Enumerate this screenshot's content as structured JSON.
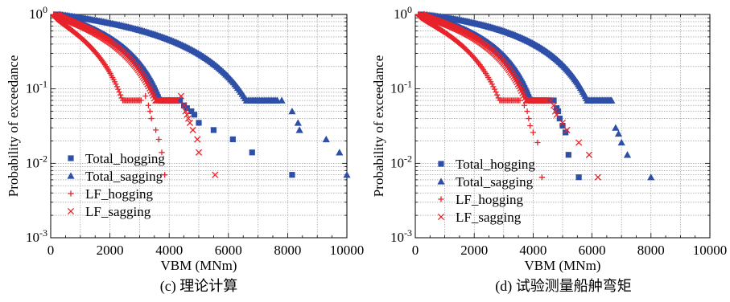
{
  "panels": [
    {
      "caption": "(c) 理论计算",
      "chart_data": {
        "type": "scatter",
        "xlabel": "VBM (MNm)",
        "ylabel": "Probability of exceedance",
        "xlim": [
          0,
          10000
        ],
        "ylim": [
          0.001,
          1
        ],
        "yscale": "log",
        "grid": true,
        "legend_position": "bottom-left",
        "x_ticks": [
          "0",
          "2000",
          "4000",
          "6000",
          "8000",
          "10000"
        ],
        "y_ticks": [
          {
            "base": "10",
            "exp": "-3",
            "value": 0.001
          },
          {
            "base": "10",
            "exp": "-2",
            "value": 0.01
          },
          {
            "base": "10",
            "exp": "-1",
            "value": 0.1
          },
          {
            "base": "10",
            "exp": "0",
            "value": 1
          }
        ],
        "series": [
          {
            "name": "Total_hogging",
            "marker": "square",
            "color": "#2E4FA8",
            "start": 200,
            "end": 4400,
            "shape": 1.2,
            "n": 140,
            "tail_x": [
              4500,
              4600,
              4750,
              4850,
              5000,
              5500,
              6150,
              6800,
              8150
            ],
            "tail_y": [
              0.06,
              0.055,
              0.05,
              0.045,
              0.035,
              0.028,
              0.021,
              0.014,
              0.007
            ]
          },
          {
            "name": "Total_sagging",
            "marker": "triangle",
            "color": "#2E4FA8",
            "start": 300,
            "end": 7700,
            "shape": 1.0,
            "n": 150,
            "tail_x": [
              7800,
              8150,
              8350,
              8400,
              9300,
              9750,
              10000
            ],
            "tail_y": [
              0.07,
              0.05,
              0.035,
              0.028,
              0.021,
              0.014,
              0.007
            ]
          },
          {
            "name": "LF_hogging",
            "marker": "plus",
            "color": "#E8232A",
            "start": 100,
            "end": 3100,
            "shape": 1.6,
            "n": 110,
            "tail_x": [
              3200,
              3300,
              3350,
              3400,
              3550,
              3650,
              3750,
              3850
            ],
            "tail_y": [
              0.08,
              0.06,
              0.05,
              0.04,
              0.028,
              0.021,
              0.014,
              0.007
            ]
          },
          {
            "name": "LF_sagging",
            "marker": "x",
            "color": "#E8232A",
            "start": 200,
            "end": 4300,
            "shape": 1.3,
            "n": 130,
            "tail_x": [
              4400,
              4500,
              4550,
              4600,
              4650,
              4700,
              4800,
              4950,
              5000,
              5550
            ],
            "tail_y": [
              0.08,
              0.06,
              0.05,
              0.045,
              0.04,
              0.035,
              0.028,
              0.021,
              0.014,
              0.007
            ]
          }
        ]
      }
    },
    {
      "caption": "(d) 试验测量船舯弯矩",
      "chart_data": {
        "type": "scatter",
        "xlabel": "VBM (MNm)",
        "ylabel": "Probability of exceedance",
        "xlim": [
          0,
          10000
        ],
        "ylim": [
          0.001,
          1
        ],
        "yscale": "log",
        "grid": true,
        "legend_position": "bottom-left",
        "x_ticks": [
          "0",
          "2000",
          "4000",
          "6000",
          "8000",
          "10000"
        ],
        "y_ticks": [
          {
            "base": "10",
            "exp": "-3",
            "value": 0.001
          },
          {
            "base": "10",
            "exp": "-2",
            "value": 0.01
          },
          {
            "base": "10",
            "exp": "-1",
            "value": 0.1
          },
          {
            "base": "10",
            "exp": "0",
            "value": 1
          }
        ],
        "series": [
          {
            "name": "Total_hogging",
            "marker": "square",
            "color": "#2E4FA8",
            "start": 200,
            "end": 4600,
            "shape": 1.1,
            "n": 140,
            "tail_x": [
              4700,
              4800,
              4850,
              4900,
              5000,
              5100,
              5200,
              5550
            ],
            "tail_y": [
              0.07,
              0.055,
              0.05,
              0.04,
              0.032,
              0.026,
              0.013,
              0.0065
            ]
          },
          {
            "name": "Total_sagging",
            "marker": "triangle",
            "color": "#2E4FA8",
            "start": 300,
            "end": 6700,
            "shape": 0.9,
            "n": 150,
            "tail_x": [
              6800,
              6900,
              7000,
              7200,
              8000
            ],
            "tail_y": [
              0.03,
              0.025,
              0.019,
              0.013,
              0.0065
            ]
          },
          {
            "name": "LF_hogging",
            "marker": "plus",
            "color": "#E8232A",
            "start": 100,
            "end": 3600,
            "shape": 1.5,
            "n": 110,
            "tail_x": [
              3700,
              3800,
              3850,
              3900,
              4000,
              4150,
              4300
            ],
            "tail_y": [
              0.06,
              0.05,
              0.04,
              0.032,
              0.026,
              0.019,
              0.0065
            ]
          },
          {
            "name": "LF_sagging",
            "marker": "x",
            "color": "#E8232A",
            "start": 200,
            "end": 4500,
            "shape": 1.2,
            "n": 130,
            "tail_x": [
              4600,
              4700,
              4750,
              4800,
              5000,
              5150,
              5550,
              5900,
              6200
            ],
            "tail_y": [
              0.07,
              0.06,
              0.05,
              0.045,
              0.035,
              0.028,
              0.019,
              0.013,
              0.0065
            ]
          }
        ]
      }
    }
  ]
}
